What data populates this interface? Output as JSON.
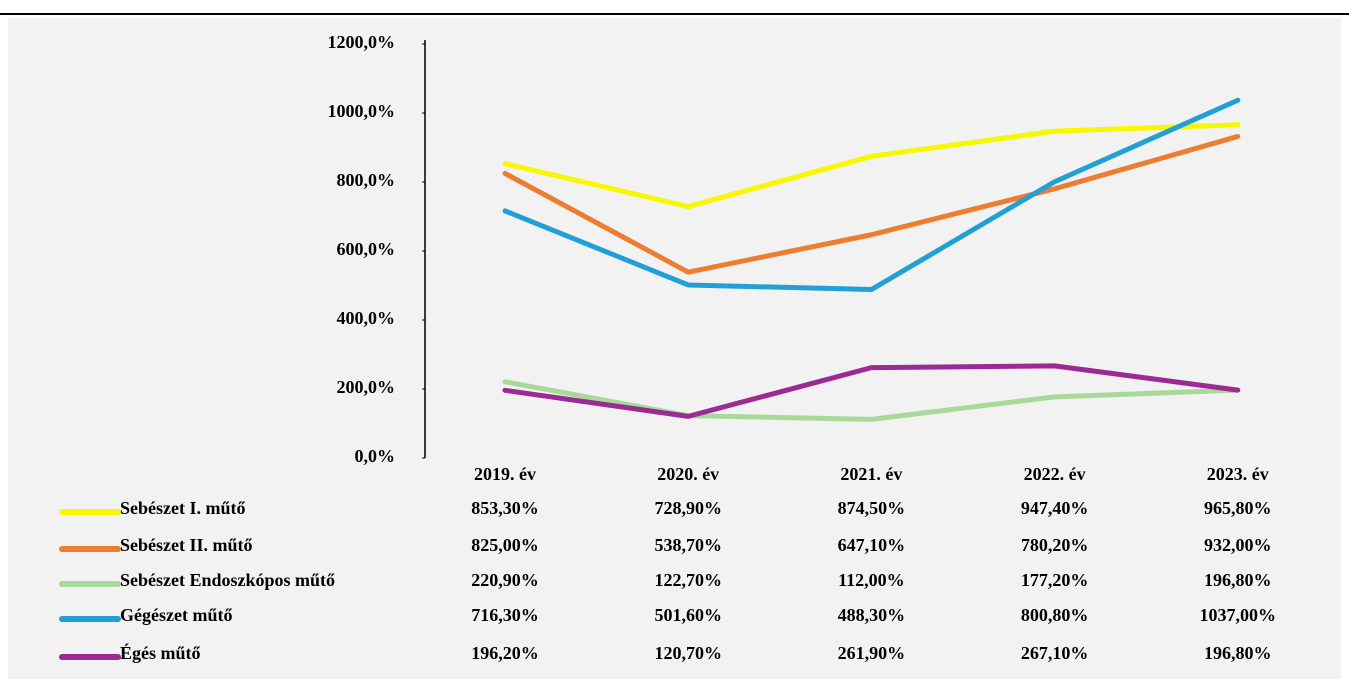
{
  "chart_data": {
    "type": "line",
    "categories": [
      "2019. év",
      "2020. év",
      "2021. év",
      "2022. év",
      "2023. év"
    ],
    "ylim": [
      0,
      1200
    ],
    "yticks": [
      {
        "value": 0,
        "label": "0,0%"
      },
      {
        "value": 200,
        "label": "200,0%"
      },
      {
        "value": 400,
        "label": "400,0%"
      },
      {
        "value": 600,
        "label": "600,0%"
      },
      {
        "value": 800,
        "label": "800,0%"
      },
      {
        "value": 1000,
        "label": "1000,0%"
      },
      {
        "value": 1200,
        "label": "1200,0%"
      }
    ],
    "series": [
      {
        "name": "Sebészet I. műtő",
        "color": "#f7f700",
        "values": [
          853.3,
          728.9,
          874.5,
          947.4,
          965.8
        ],
        "value_labels": [
          "853,30%",
          "728,90%",
          "874,50%",
          "947,40%",
          "965,80%"
        ]
      },
      {
        "name": "Sebészet II. műtő",
        "color": "#ed7d31",
        "values": [
          825.0,
          538.7,
          647.1,
          780.2,
          932.0
        ],
        "value_labels": [
          "825,00%",
          "538,70%",
          "647,10%",
          "780,20%",
          "932,00%"
        ]
      },
      {
        "name": "Sebészet Endoszkópos műtő",
        "color": "#a9d99a",
        "values": [
          220.9,
          122.7,
          112.0,
          177.2,
          196.8
        ],
        "value_labels": [
          "220,90%",
          "122,70%",
          "112,00%",
          "177,20%",
          "196,80%"
        ]
      },
      {
        "name": "Gégészet műtő",
        "color": "#22a0d6",
        "values": [
          716.3,
          501.6,
          488.3,
          800.8,
          1037.0
        ],
        "value_labels": [
          "716,30%",
          "501,60%",
          "488,30%",
          "800,80%",
          "1037,00%"
        ]
      },
      {
        "name": "Égés műtő",
        "color": "#9c2a94",
        "values": [
          196.2,
          120.7,
          261.9,
          267.1,
          196.8
        ],
        "value_labels": [
          "196,20%",
          "120,70%",
          "261,90%",
          "267,10%",
          "196,80%"
        ]
      }
    ]
  }
}
